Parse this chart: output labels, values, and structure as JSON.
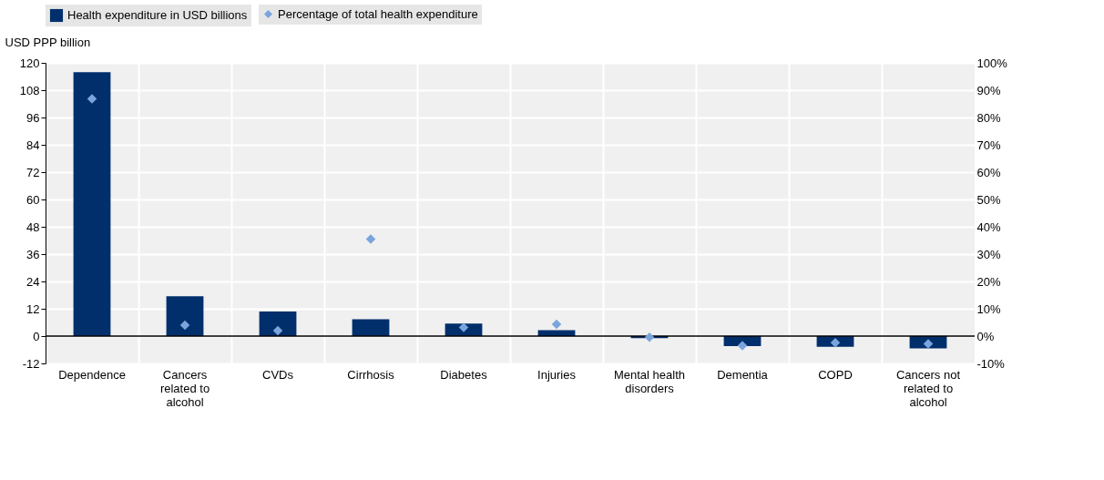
{
  "chart_data": {
    "type": "bar",
    "categories": [
      "Dependence",
      "Cancers related to alcohol",
      "CVDs",
      "Cirrhosis",
      "Diabetes",
      "Injuries",
      "Mental health disorders",
      "Dementia",
      "COPD",
      "Cancers not related to alcohol"
    ],
    "series": [
      {
        "name": "Health expenditure in USD billions",
        "type": "bar",
        "color": "#002f6c",
        "values": [
          115.9,
          17.5,
          10.8,
          7.4,
          5.5,
          2.6,
          -0.9,
          -4.4,
          -4.7,
          -5.4
        ]
      },
      {
        "name": "Percentage of total health expenditure",
        "type": "scatter",
        "axis": "y2",
        "marker": "diamond",
        "color": "#7ba4dc",
        "values": [
          86.8,
          4.0,
          2.0,
          35.5,
          3.2,
          4.3,
          -0.4,
          -3.5,
          -2.4,
          -2.8
        ]
      }
    ],
    "ylabel": "USD PPP billion",
    "ylim": [
      -12,
      120
    ],
    "yticks": [
      -12,
      0,
      12,
      24,
      36,
      48,
      60,
      72,
      84,
      96,
      108,
      120
    ],
    "y2lim": [
      -10,
      100
    ],
    "y2ticks": [
      {
        "value": -10,
        "label": "-10%"
      },
      {
        "value": 0,
        "label": "0%"
      },
      {
        "value": 10,
        "label": "10%"
      },
      {
        "value": 20,
        "label": "20%"
      },
      {
        "value": 30,
        "label": "30%"
      },
      {
        "value": 40,
        "label": "40%"
      },
      {
        "value": 50,
        "label": "50%"
      },
      {
        "value": 60,
        "label": "60%"
      },
      {
        "value": 70,
        "label": "70%"
      },
      {
        "value": 80,
        "label": "80%"
      },
      {
        "value": 90,
        "label": "90%"
      },
      {
        "value": 100,
        "label": "100%"
      }
    ],
    "grid": true,
    "legend": "top"
  }
}
